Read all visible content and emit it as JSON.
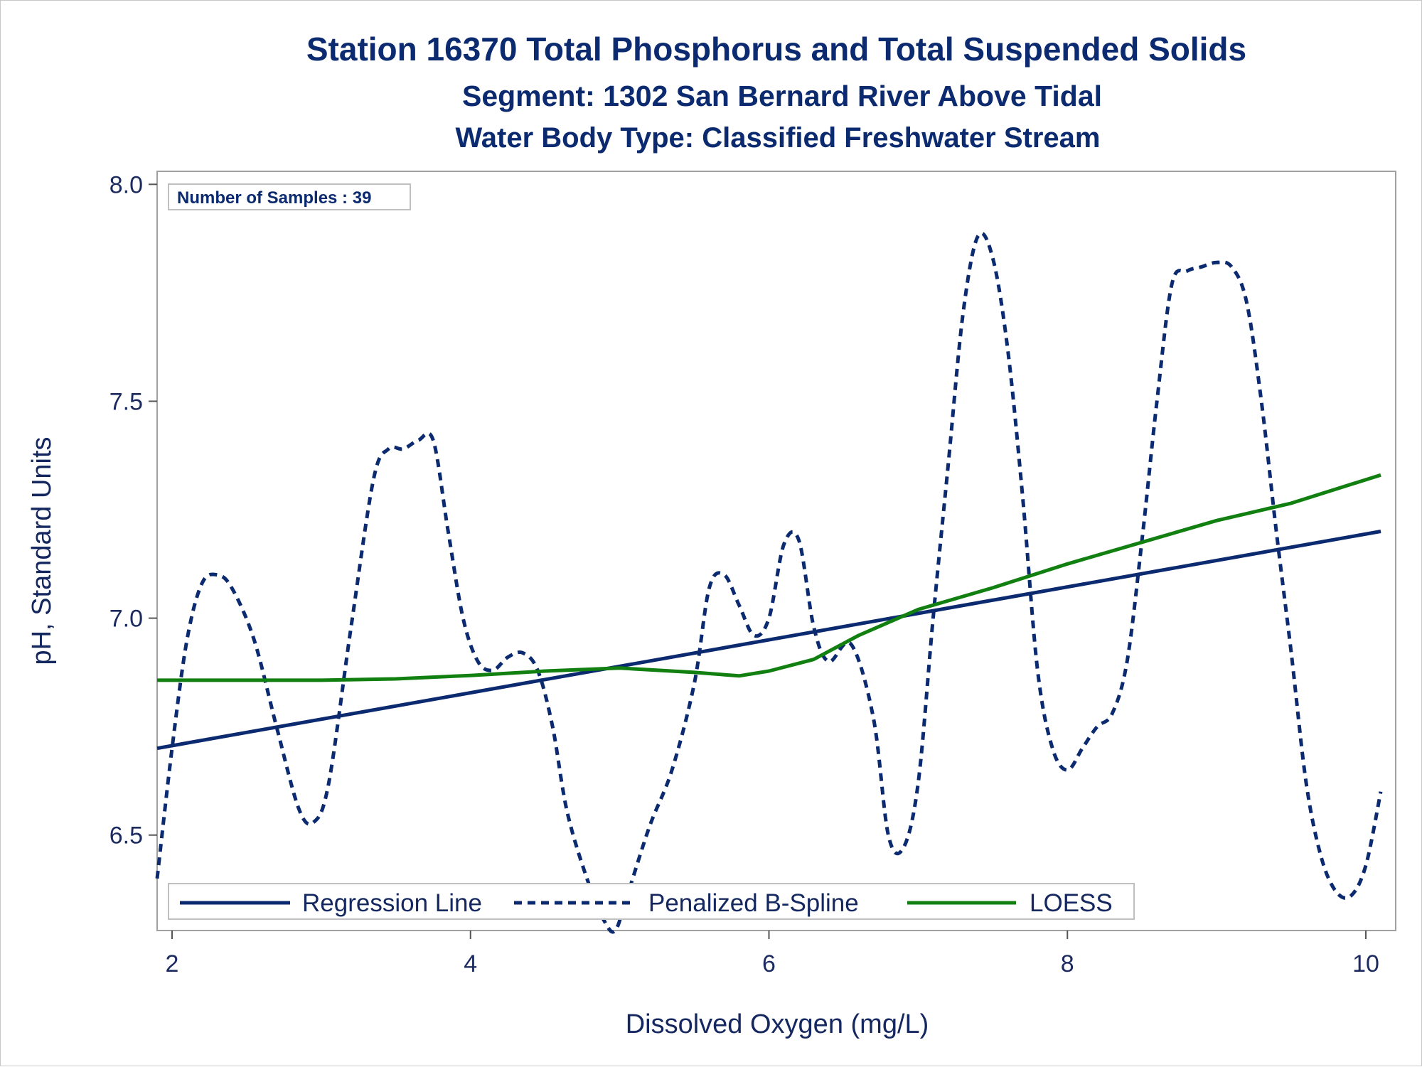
{
  "titles": {
    "line1": "Station 16370  Total Phosphorus and Total Suspended Solids",
    "line2": "Segment: 1302  San Bernard River Above Tidal",
    "line3": "Water Body Type: Classified Freshwater Stream"
  },
  "inset": {
    "samples_text": "Number of Samples : 39"
  },
  "colors": {
    "regression": "#0b2a6f",
    "spline": "#0b2a6f",
    "loess": "#118011",
    "text": "#0b2a6f",
    "frame": "#a0a0a0"
  },
  "chart_data": {
    "type": "line",
    "xlabel": "Dissolved Oxygen (mg/L)",
    "ylabel": "pH, Standard Units",
    "xlim": [
      1.9,
      10.2
    ],
    "ylim": [
      6.28,
      8.03
    ],
    "xticks": [
      "2",
      "4",
      "6",
      "8",
      "10"
    ],
    "yticks": [
      "6.5",
      "7.0",
      "7.5",
      "8.0"
    ],
    "grid": false,
    "legend": {
      "placement": "bottom-left",
      "entries": [
        "Regression Line",
        "Penalized B-Spline",
        "LOESS"
      ]
    },
    "series": [
      {
        "name": "Regression Line",
        "style": "solid",
        "x": [
          1.9,
          10.1
        ],
        "y": [
          6.7,
          7.2
        ]
      },
      {
        "name": "Penalized B-Spline",
        "style": "dashed",
        "x": [
          1.9,
          2.0,
          2.1,
          2.2,
          2.3,
          2.4,
          2.55,
          2.7,
          2.85,
          2.95,
          3.05,
          3.2,
          3.35,
          3.45,
          3.55,
          3.65,
          3.75,
          3.85,
          3.95,
          4.05,
          4.15,
          4.25,
          4.35,
          4.45,
          4.55,
          4.65,
          4.8,
          4.9,
          4.97,
          5.05,
          5.2,
          5.35,
          5.5,
          5.6,
          5.7,
          5.8,
          5.9,
          6.0,
          6.1,
          6.2,
          6.3,
          6.4,
          6.55,
          6.7,
          6.8,
          6.9,
          7.0,
          7.1,
          7.2,
          7.3,
          7.4,
          7.5,
          7.6,
          7.7,
          7.8,
          7.9,
          8.0,
          8.1,
          8.2,
          8.3,
          8.4,
          8.5,
          8.6,
          8.7,
          8.8,
          8.9,
          9.0,
          9.1,
          9.2,
          9.3,
          9.4,
          9.5,
          9.6,
          9.7,
          9.8,
          9.9,
          10.0,
          10.1
        ],
        "y": [
          6.4,
          6.7,
          6.95,
          7.08,
          7.1,
          7.07,
          6.95,
          6.75,
          6.56,
          6.53,
          6.62,
          6.98,
          7.32,
          7.39,
          7.39,
          7.41,
          7.41,
          7.2,
          7.0,
          6.9,
          6.88,
          6.91,
          6.92,
          6.88,
          6.75,
          6.55,
          6.38,
          6.3,
          6.28,
          6.36,
          6.52,
          6.65,
          6.85,
          7.07,
          7.1,
          7.03,
          6.96,
          7.0,
          7.17,
          7.18,
          6.98,
          6.9,
          6.94,
          6.77,
          6.5,
          6.47,
          6.62,
          7.0,
          7.35,
          7.7,
          7.88,
          7.83,
          7.62,
          7.28,
          6.88,
          6.7,
          6.65,
          6.7,
          6.75,
          6.78,
          6.9,
          7.18,
          7.5,
          7.77,
          7.8,
          7.81,
          7.82,
          7.81,
          7.73,
          7.5,
          7.2,
          6.92,
          6.62,
          6.45,
          6.37,
          6.36,
          6.43,
          6.6
        ]
      },
      {
        "name": "LOESS",
        "style": "solid",
        "x": [
          1.9,
          3.0,
          3.5,
          4.0,
          4.5,
          5.0,
          5.5,
          5.8,
          6.0,
          6.3,
          6.6,
          7.0,
          7.5,
          8.0,
          8.5,
          9.0,
          9.5,
          10.1
        ],
        "y": [
          6.857,
          6.857,
          6.86,
          6.868,
          6.878,
          6.885,
          6.875,
          6.867,
          6.878,
          6.905,
          6.96,
          7.02,
          7.07,
          7.125,
          7.175,
          7.225,
          7.265,
          7.33
        ]
      }
    ]
  }
}
